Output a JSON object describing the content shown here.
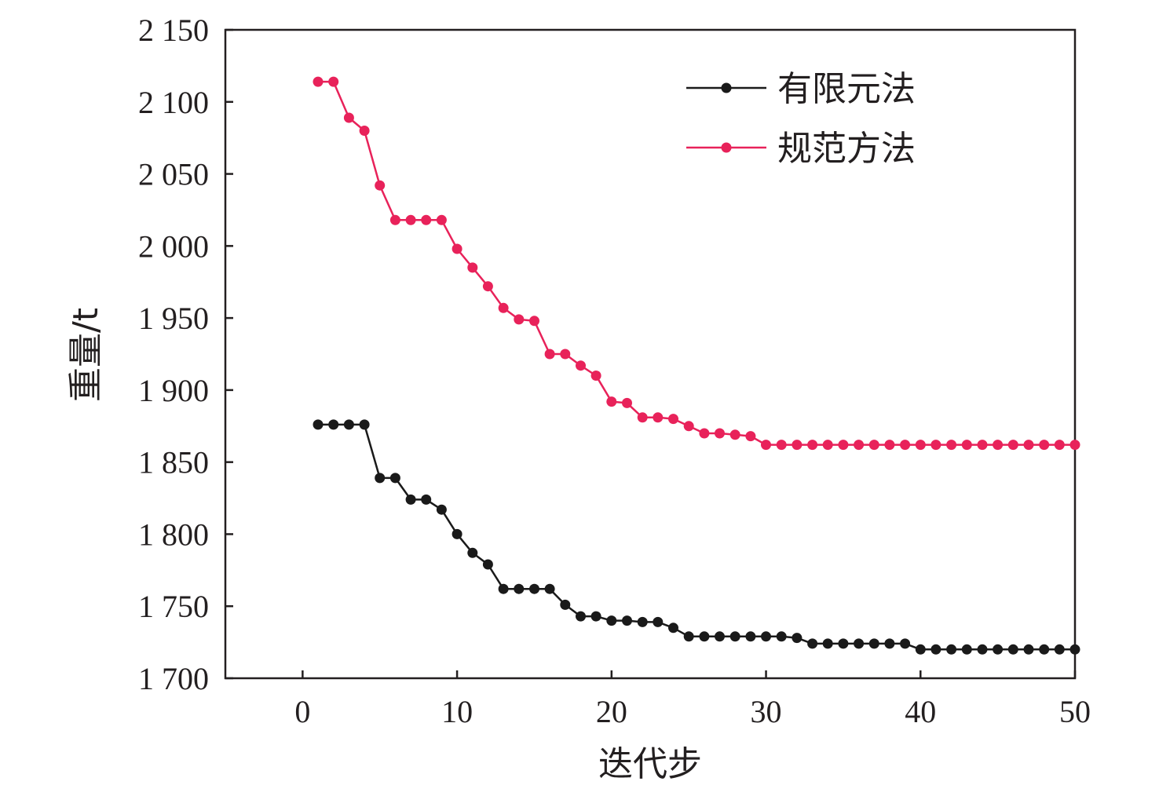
{
  "chart_data": {
    "type": "line",
    "xlabel": "迭代步",
    "ylabel": "重量/t",
    "xlim": [
      -5,
      50
    ],
    "ylim": [
      1700,
      2150
    ],
    "x_ticks": [
      0,
      10,
      20,
      30,
      40,
      50
    ],
    "x_tick_labels": [
      "0",
      "10",
      "20",
      "30",
      "40",
      "50"
    ],
    "y_ticks": [
      1700,
      1750,
      1800,
      1850,
      1900,
      1950,
      2000,
      2050,
      2100,
      2150
    ],
    "y_tick_labels": [
      "1 700",
      "1 750",
      "1 800",
      "1 850",
      "1 900",
      "1 950",
      "2 000",
      "2 050",
      "2 100",
      "2 150"
    ],
    "legend_position": "top-right",
    "grid": false,
    "x": [
      1,
      2,
      3,
      4,
      5,
      6,
      7,
      8,
      9,
      10,
      11,
      12,
      13,
      14,
      15,
      16,
      17,
      18,
      19,
      20,
      21,
      22,
      23,
      24,
      25,
      26,
      27,
      28,
      29,
      30,
      31,
      32,
      33,
      34,
      35,
      36,
      37,
      38,
      39,
      40,
      41,
      42,
      43,
      44,
      45,
      46,
      47,
      48,
      49,
      50
    ],
    "series": [
      {
        "name": "有限元法",
        "color": "#1a1a1a",
        "values": [
          1876,
          1876,
          1876,
          1876,
          1839,
          1839,
          1824,
          1824,
          1817,
          1800,
          1787,
          1779,
          1762,
          1762,
          1762,
          1762,
          1751,
          1743,
          1743,
          1740,
          1740,
          1739,
          1739,
          1735,
          1729,
          1729,
          1729,
          1729,
          1729,
          1729,
          1729,
          1728,
          1724,
          1724,
          1724,
          1724,
          1724,
          1724,
          1724,
          1720,
          1720,
          1720,
          1720,
          1720,
          1720,
          1720,
          1720,
          1720,
          1720,
          1720
        ]
      },
      {
        "name": "规范方法",
        "color": "#e8225a",
        "values": [
          2114,
          2114,
          2089,
          2080,
          2042,
          2018,
          2018,
          2018,
          2018,
          1998,
          1985,
          1972,
          1957,
          1949,
          1948,
          1925,
          1925,
          1917,
          1910,
          1892,
          1891,
          1881,
          1881,
          1880,
          1875,
          1870,
          1870,
          1869,
          1868,
          1862,
          1862,
          1862,
          1862,
          1862,
          1862,
          1862,
          1862,
          1862,
          1862,
          1862,
          1862,
          1862,
          1862,
          1862,
          1862,
          1862,
          1862,
          1862,
          1862,
          1862
        ]
      }
    ]
  }
}
